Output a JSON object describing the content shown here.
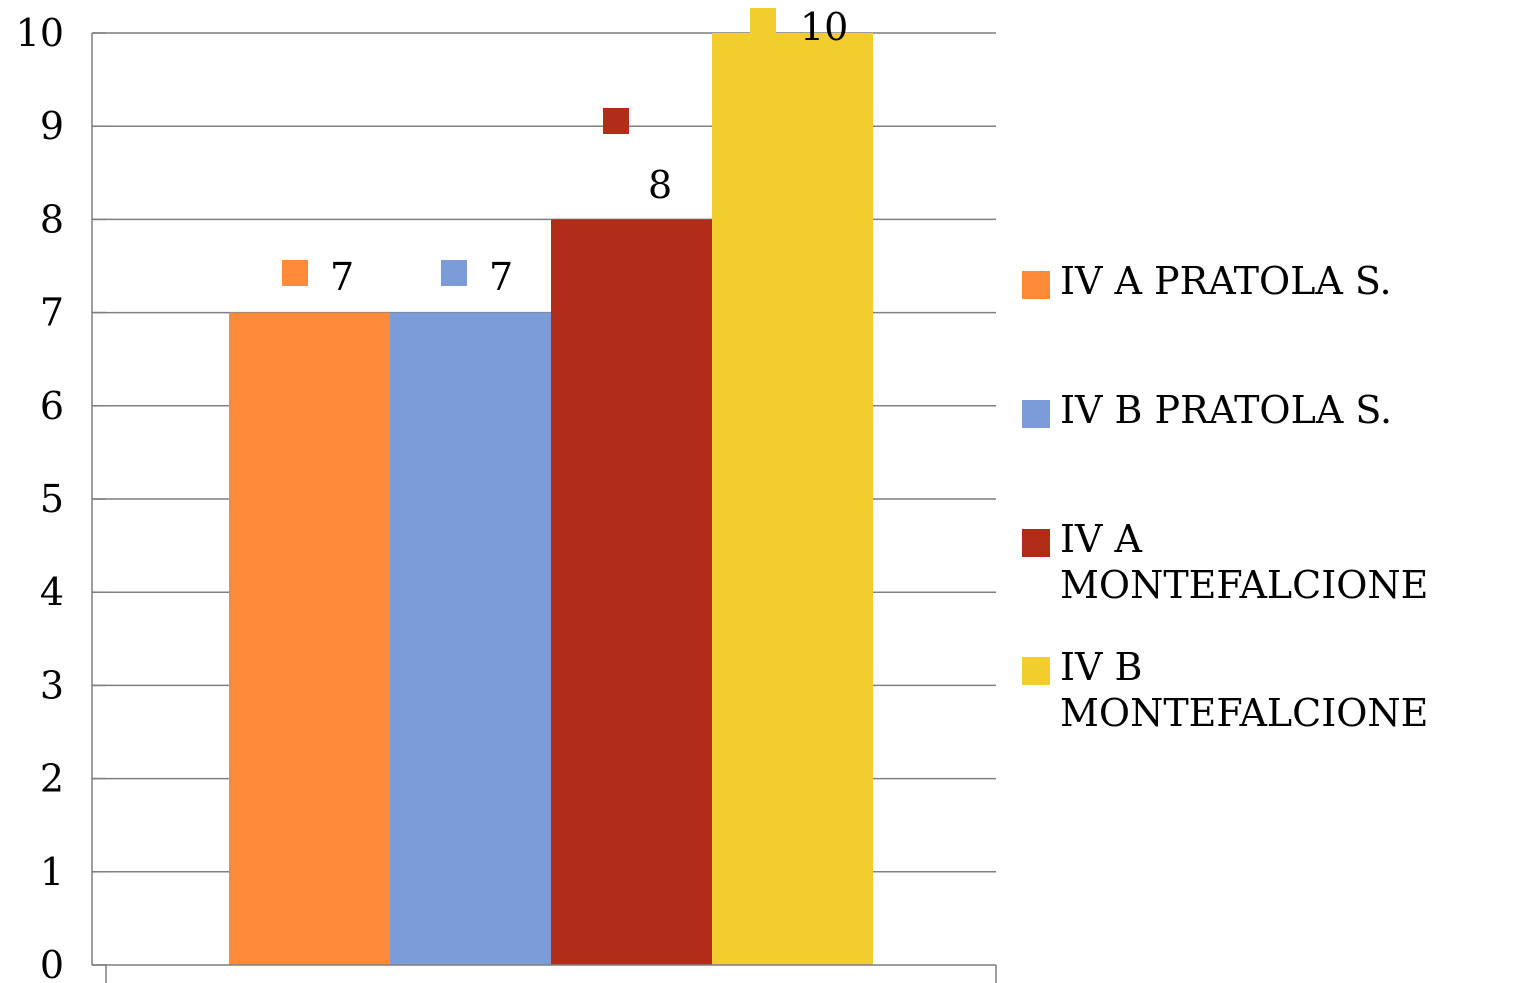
{
  "chart_data": {
    "type": "bar",
    "ylim": [
      0,
      10
    ],
    "y_ticks": [
      "0",
      "1",
      "2",
      "3",
      "4",
      "5",
      "6",
      "7",
      "8",
      "9",
      "10"
    ],
    "grid": true,
    "legend_position": "right",
    "series": [
      {
        "name": "IV A PRATOLA S.",
        "value": 7,
        "label": "7",
        "color": "#FF8A3A"
      },
      {
        "name": "IV B PRATOLA S.",
        "value": 7,
        "label": "7",
        "color": "#7B9BD9"
      },
      {
        "name": "IV A MONTEFALCIONE",
        "value": 8,
        "label": "8",
        "color": "#B02D18"
      },
      {
        "name": "IV B MONTEFALCIONE",
        "value": 10,
        "label": "10",
        "color": "#F2CD2E"
      }
    ]
  },
  "legend": {
    "items": [
      {
        "label": "IV A PRATOLA S.",
        "color": "#FF8A3A"
      },
      {
        "label": "IV B PRATOLA S.",
        "color": "#7B9BD9"
      },
      {
        "label": "IV A\nMONTEFALCIONE",
        "color": "#B02D18"
      },
      {
        "label": "IV B\nMONTEFALCIONE",
        "color": "#F2CD2E"
      }
    ]
  }
}
